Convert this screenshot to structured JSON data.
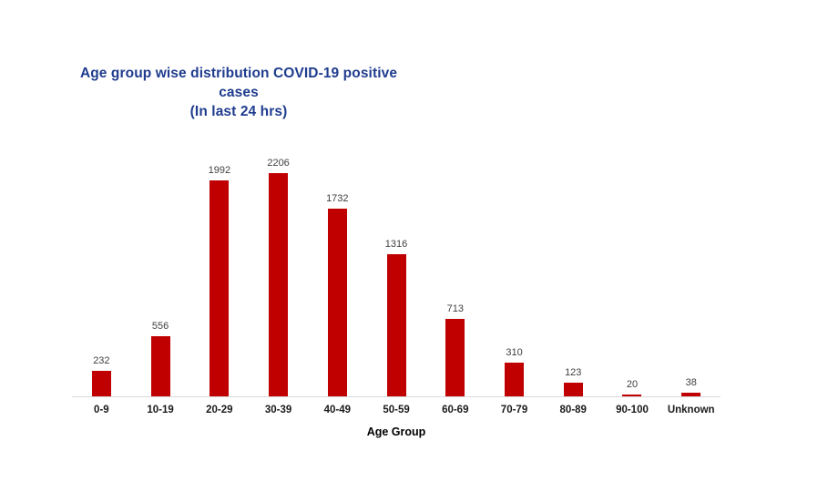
{
  "chart": {
    "title": "Age group wise distribution COVID-19 positive cases",
    "subtitle": "(In last 24 hrs)",
    "xlabel": "Age Group",
    "colors": {
      "title_text": "#1F3C8E",
      "bar_fill": "#C00000",
      "axis_line": "#D9D9D9",
      "value_label": "#404040",
      "tick_label": "#1a1a1a",
      "background": "#ffffff"
    }
  },
  "chart_data": {
    "type": "bar",
    "title": "Age group wise distribution COVID-19 positive cases (In last 24 hrs)",
    "categories": [
      "0-9",
      "10-19",
      "20-29",
      "30-39",
      "40-49",
      "50-59",
      "60-69",
      "70-79",
      "80-89",
      "90-100",
      "Unknown"
    ],
    "values": [
      232,
      556,
      1992,
      2206,
      1732,
      1316,
      713,
      310,
      123,
      20,
      38
    ],
    "xlabel": "Age Group",
    "ylabel": "",
    "ylim": [
      0,
      2206
    ],
    "grid": false,
    "legend": "none",
    "data_labels": true,
    "y_axis_visible": false
  }
}
